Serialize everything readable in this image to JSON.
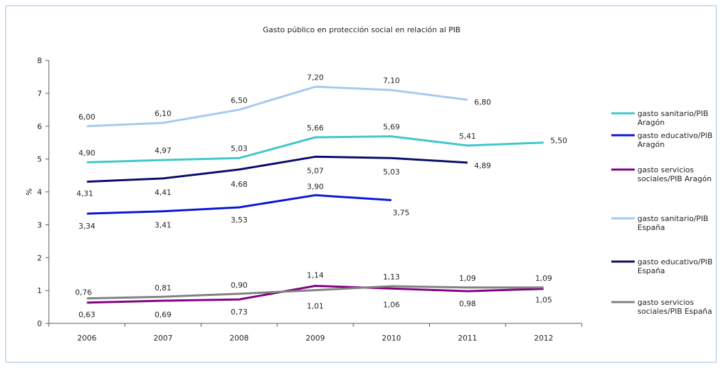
{
  "chart_data": {
    "type": "line",
    "title": "Gasto público en protección social en relación al PIB",
    "xlabel": "",
    "ylabel": "%",
    "ylim": [
      0,
      8
    ],
    "yticks": [
      0,
      1,
      2,
      3,
      4,
      5,
      6,
      7,
      8
    ],
    "categories": [
      "2006",
      "2007",
      "2008",
      "2009",
      "2010",
      "2011",
      "2012"
    ],
    "grid": false,
    "legend_position": "right",
    "series": [
      {
        "name": "gasto sanitario/PIB Aragón",
        "color": "#3cc8c8",
        "values": [
          4.9,
          4.97,
          5.03,
          5.66,
          5.69,
          5.41,
          5.5
        ],
        "labels": [
          "4,90",
          "4,97",
          "5,03",
          "5,66",
          "5,69",
          "5,41",
          "5,50"
        ]
      },
      {
        "name": "gasto educativo/PIB Aragón",
        "color": "#0a14d8",
        "values": [
          3.34,
          3.41,
          3.53,
          3.9,
          3.75,
          null,
          null
        ],
        "labels": [
          "3,34",
          "3,41",
          "3,53",
          "3,90",
          "3,75",
          null,
          null
        ]
      },
      {
        "name": "gasto servicios sociales/PIB Aragón",
        "color": "#800080",
        "values": [
          0.63,
          0.69,
          0.73,
          1.14,
          1.06,
          0.98,
          1.05
        ],
        "labels": [
          "0,63",
          "0,69",
          "0,73",
          "1,14",
          "1,06",
          "0,98",
          "1,05"
        ]
      },
      {
        "name": "gasto sanitario/PIB España",
        "color": "#a6c8f0",
        "values": [
          6.0,
          6.1,
          6.5,
          7.2,
          7.1,
          6.8,
          null
        ],
        "labels": [
          "6,00",
          "6,10",
          "6,50",
          "7,20",
          "7,10",
          "6,80",
          null
        ]
      },
      {
        "name": "gasto educativo/PIB España",
        "color": "#0a0a6e",
        "values": [
          4.31,
          4.41,
          4.68,
          5.07,
          5.03,
          4.89,
          null
        ],
        "labels": [
          "4,31",
          "4,41",
          "4,68",
          "5,07",
          "5,03",
          "4,89",
          null
        ]
      },
      {
        "name": "gasto servicios sociales/PIB España",
        "color": "#808080",
        "values": [
          0.76,
          0.81,
          0.9,
          1.01,
          1.13,
          1.09,
          1.09
        ],
        "labels": [
          "0,76",
          "0,81",
          "0,90",
          "1,01",
          "1,13",
          "1,09",
          "1,09"
        ]
      }
    ]
  }
}
